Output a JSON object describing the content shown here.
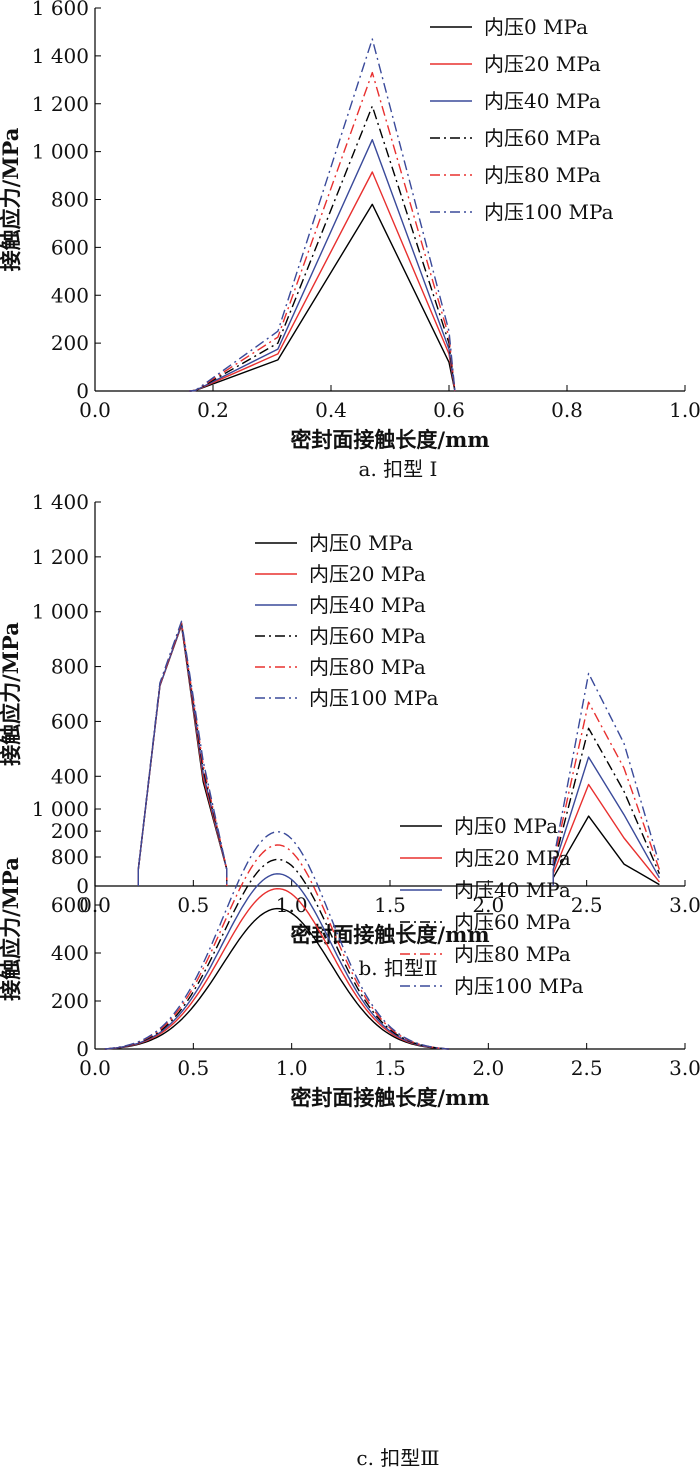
{
  "figure": {
    "captions": [
      "a. 扣型 I",
      "b. 扣型Ⅱ",
      "c. 扣型Ⅲ"
    ]
  },
  "chart_data": [
    {
      "type": "line",
      "title": "a. 扣型 I",
      "xlabel": "密封面接触长度/mm",
      "ylabel": "接触应力/MPa",
      "xlim": [
        0,
        1.0
      ],
      "ylim": [
        0,
        1600
      ],
      "xticks": [
        0,
        0.2,
        0.4,
        0.6,
        0.8,
        1.0
      ],
      "xtick_labels": [
        "0.0",
        "0.2",
        "0.4",
        "0.6",
        "0.8",
        "1.0"
      ],
      "yticks": [
        0,
        200,
        400,
        600,
        800,
        1000,
        1200,
        1400,
        1600
      ],
      "ytick_labels": [
        "0",
        "200",
        "400",
        "600",
        "800",
        "1 000",
        "1 200",
        "1 400",
        "1 600"
      ],
      "legend_position": "top-right",
      "series": [
        {
          "name": "内压0 MPa",
          "color": "#000000",
          "dash": "solid",
          "points": [
            [
              0.16,
              0
            ],
            [
              0.17,
              2
            ],
            [
              0.31,
              130
            ],
            [
              0.47,
              780
            ],
            [
              0.6,
              120
            ],
            [
              0.61,
              0
            ]
          ]
        },
        {
          "name": "内压20 MPa",
          "color": "#e8302f",
          "dash": "solid",
          "points": [
            [
              0.16,
              0
            ],
            [
              0.17,
              2
            ],
            [
              0.31,
              155
            ],
            [
              0.47,
              915
            ],
            [
              0.6,
              155
            ],
            [
              0.61,
              0
            ]
          ]
        },
        {
          "name": "内压40 MPa",
          "color": "#3a4a9a",
          "dash": "solid",
          "points": [
            [
              0.16,
              0
            ],
            [
              0.17,
              2
            ],
            [
              0.31,
              175
            ],
            [
              0.47,
              1050
            ],
            [
              0.6,
              175
            ],
            [
              0.61,
              0
            ]
          ]
        },
        {
          "name": "内压60 MPa",
          "color": "#000000",
          "dash": "dashdot",
          "points": [
            [
              0.16,
              0
            ],
            [
              0.17,
              2
            ],
            [
              0.31,
              200
            ],
            [
              0.47,
              1190
            ],
            [
              0.6,
              200
            ],
            [
              0.61,
              0
            ]
          ]
        },
        {
          "name": "内压80 MPa",
          "color": "#e8302f",
          "dash": "dashdot",
          "points": [
            [
              0.16,
              0
            ],
            [
              0.17,
              2
            ],
            [
              0.31,
              225
            ],
            [
              0.47,
              1330
            ],
            [
              0.6,
              225
            ],
            [
              0.61,
              0
            ]
          ]
        },
        {
          "name": "内压100 MPa",
          "color": "#3a4a9a",
          "dash": "dashdot",
          "points": [
            [
              0.16,
              0
            ],
            [
              0.17,
              2
            ],
            [
              0.31,
              250
            ],
            [
              0.47,
              1470
            ],
            [
              0.6,
              250
            ],
            [
              0.61,
              0
            ]
          ]
        }
      ]
    },
    {
      "type": "line",
      "title": "b. 扣型Ⅱ",
      "xlabel": "密封面接触长度/mm",
      "ylabel": "接触应力/MPa",
      "xlim": [
        0,
        3.0
      ],
      "ylim": [
        0,
        1400
      ],
      "xticks": [
        0,
        0.5,
        1.0,
        1.5,
        2.0,
        2.5,
        3.0
      ],
      "xtick_labels": [
        "0.0",
        "0.5",
        "1.0",
        "1.5",
        "2.0",
        "2.5",
        "3.0"
      ],
      "yticks": [
        0,
        200,
        400,
        600,
        800,
        1000,
        1200,
        1400
      ],
      "ytick_labels": [
        "0",
        "200",
        "400",
        "600",
        "800",
        "1 000",
        "1 200",
        "1 400"
      ],
      "legend_position": "top-center",
      "series": [
        {
          "name": "内压0 MPa",
          "color": "#000000",
          "dash": "solid",
          "segments": [
            [
              [
                0.22,
                0
              ],
              [
                0.22,
                60
              ],
              [
                0.33,
                730
              ],
              [
                0.44,
                950
              ],
              [
                0.55,
                380
              ],
              [
                0.67,
                60
              ],
              [
                0.67,
                0
              ]
            ],
            [
              [
                2.33,
                0
              ],
              [
                2.33,
                30
              ],
              [
                2.51,
                255
              ],
              [
                2.69,
                80
              ],
              [
                2.87,
                5
              ]
            ]
          ]
        },
        {
          "name": "内压20 MPa",
          "color": "#e8302f",
          "dash": "solid",
          "segments": [
            [
              [
                0.22,
                0
              ],
              [
                0.22,
                60
              ],
              [
                0.33,
                730
              ],
              [
                0.44,
                952
              ],
              [
                0.55,
                395
              ],
              [
                0.67,
                60
              ],
              [
                0.67,
                0
              ]
            ],
            [
              [
                2.33,
                0
              ],
              [
                2.33,
                45
              ],
              [
                2.51,
                370
              ],
              [
                2.69,
                175
              ],
              [
                2.87,
                15
              ]
            ]
          ]
        },
        {
          "name": "内压40 MPa",
          "color": "#3a4a9a",
          "dash": "solid",
          "segments": [
            [
              [
                0.22,
                0
              ],
              [
                0.22,
                60
              ],
              [
                0.33,
                730
              ],
              [
                0.44,
                955
              ],
              [
                0.55,
                410
              ],
              [
                0.67,
                60
              ],
              [
                0.67,
                0
              ]
            ],
            [
              [
                2.33,
                0
              ],
              [
                2.33,
                60
              ],
              [
                2.51,
                470
              ],
              [
                2.69,
                260
              ],
              [
                2.87,
                30
              ]
            ]
          ]
        },
        {
          "name": "内压60 MPa",
          "color": "#000000",
          "dash": "dashdot",
          "segments": [
            [
              [
                0.22,
                0
              ],
              [
                0.22,
                60
              ],
              [
                0.33,
                735
              ],
              [
                0.44,
                958
              ],
              [
                0.55,
                425
              ],
              [
                0.67,
                60
              ],
              [
                0.67,
                0
              ]
            ],
            [
              [
                2.33,
                0
              ],
              [
                2.33,
                70
              ],
              [
                2.51,
                575
              ],
              [
                2.69,
                345
              ],
              [
                2.87,
                45
              ]
            ]
          ]
        },
        {
          "name": "内压80 MPa",
          "color": "#e8302f",
          "dash": "dashdot",
          "segments": [
            [
              [
                0.22,
                0
              ],
              [
                0.22,
                60
              ],
              [
                0.33,
                735
              ],
              [
                0.44,
                960
              ],
              [
                0.55,
                440
              ],
              [
                0.67,
                60
              ],
              [
                0.67,
                0
              ]
            ],
            [
              [
                2.33,
                0
              ],
              [
                2.33,
                80
              ],
              [
                2.51,
                670
              ],
              [
                2.69,
                430
              ],
              [
                2.87,
                60
              ]
            ]
          ]
        },
        {
          "name": "内压100 MPa",
          "color": "#3a4a9a",
          "dash": "dashdot",
          "segments": [
            [
              [
                0.22,
                0
              ],
              [
                0.22,
                60
              ],
              [
                0.33,
                740
              ],
              [
                0.44,
                965
              ],
              [
                0.55,
                455
              ],
              [
                0.67,
                60
              ],
              [
                0.67,
                0
              ]
            ],
            [
              [
                2.33,
                0
              ],
              [
                2.33,
                90
              ],
              [
                2.51,
                775
              ],
              [
                2.69,
                520
              ],
              [
                2.87,
                80
              ]
            ]
          ]
        }
      ]
    },
    {
      "type": "line",
      "title": "c. 扣型Ⅲ",
      "xlabel": "密封面接触长度/mm",
      "ylabel": "接触应力/MPa",
      "xlim": [
        0,
        3.0
      ],
      "ylim": [
        0,
        1000
      ],
      "xticks": [
        0,
        0.5,
        1.0,
        1.5,
        2.0,
        2.5,
        3.0
      ],
      "xtick_labels": [
        "0.0",
        "0.5",
        "1.0",
        "1.5",
        "2.0",
        "2.5",
        "3.0"
      ],
      "yticks": [
        0,
        200,
        400,
        600,
        800,
        1000
      ],
      "ytick_labels": [
        "0",
        "200",
        "400",
        "600",
        "800",
        "1 000"
      ],
      "legend_position": "top-right",
      "curve_shape": {
        "peak_x": 0.93,
        "start_x": 0.05,
        "end_x": 1.8
      },
      "series": [
        {
          "name": "内压0 MPa",
          "color": "#000000",
          "dash": "solid",
          "peak": 585
        },
        {
          "name": "内压20 MPa",
          "color": "#e8302f",
          "dash": "solid",
          "peak": 668
        },
        {
          "name": "内压40 MPa",
          "color": "#3a4a9a",
          "dash": "solid",
          "peak": 730
        },
        {
          "name": "内压60 MPa",
          "color": "#000000",
          "dash": "dashdot",
          "peak": 790
        },
        {
          "name": "内压80 MPa",
          "color": "#e8302f",
          "dash": "dashdot",
          "peak": 850
        },
        {
          "name": "内压100 MPa",
          "color": "#3a4a9a",
          "dash": "dashdot",
          "peak": 905
        }
      ]
    }
  ]
}
